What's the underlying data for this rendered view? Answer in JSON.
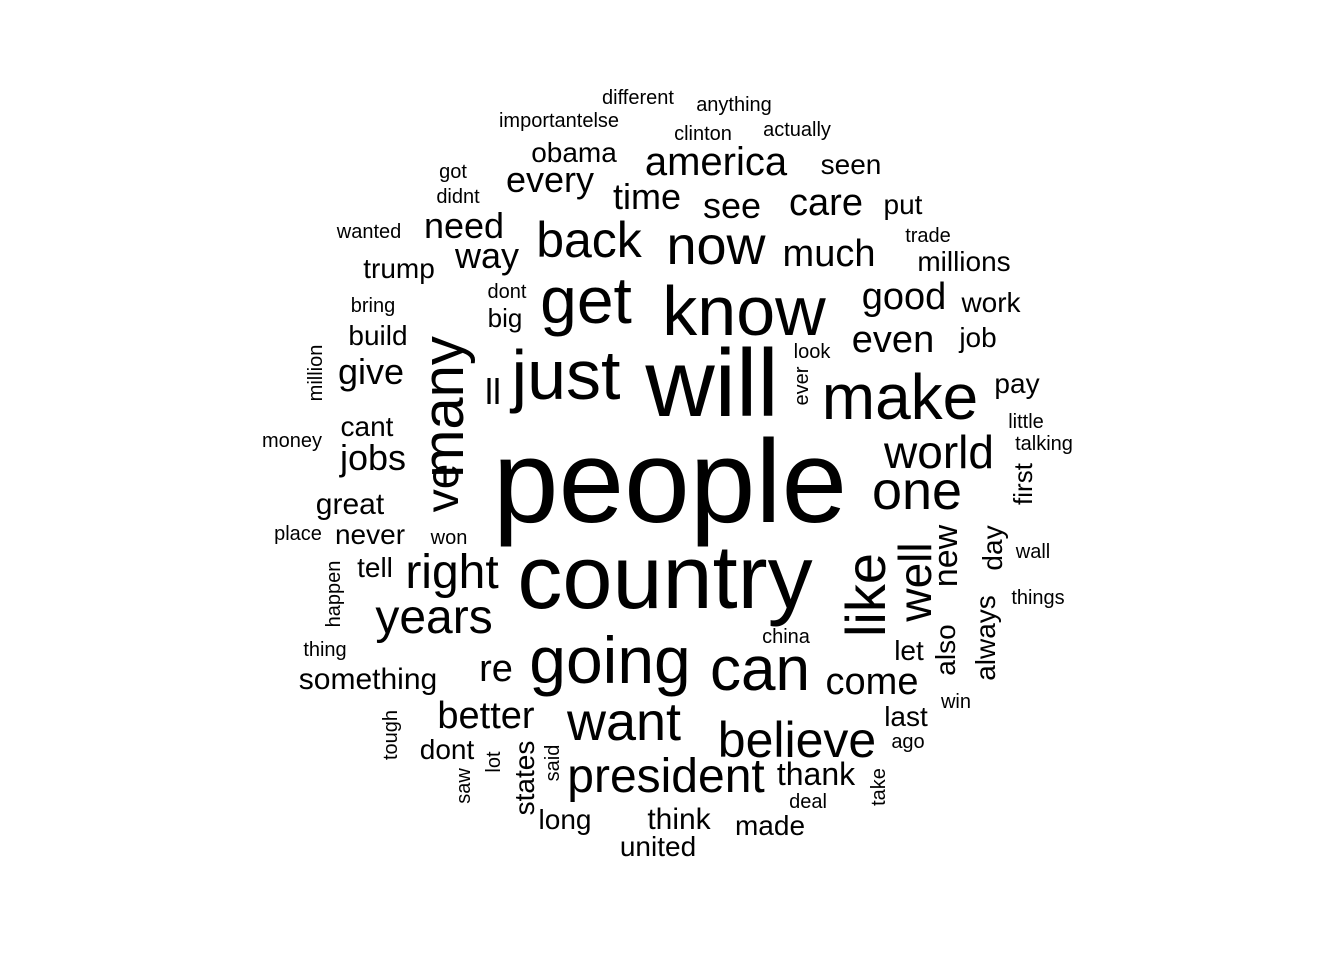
{
  "text_color": "#000000",
  "background": "#ffffff",
  "words": [
    {
      "text": "people",
      "rotated": false
    },
    {
      "text": "country",
      "rotated": false
    },
    {
      "text": "will",
      "rotated": false
    },
    {
      "text": "know",
      "rotated": false
    },
    {
      "text": "just",
      "rotated": false
    },
    {
      "text": "get",
      "rotated": false
    },
    {
      "text": "make",
      "rotated": false
    },
    {
      "text": "many",
      "rotated": true
    },
    {
      "text": "going",
      "rotated": false
    },
    {
      "text": "can",
      "rotated": false
    },
    {
      "text": "want",
      "rotated": false
    },
    {
      "text": "president",
      "rotated": false
    },
    {
      "text": "like",
      "rotated": true
    },
    {
      "text": "believe",
      "rotated": false
    },
    {
      "text": "one",
      "rotated": false
    },
    {
      "text": "now",
      "rotated": false
    },
    {
      "text": "back",
      "rotated": false
    },
    {
      "text": "world",
      "rotated": false
    },
    {
      "text": "right",
      "rotated": false
    },
    {
      "text": "years",
      "rotated": false
    },
    {
      "text": "ve",
      "rotated": true
    },
    {
      "text": "well",
      "rotated": true
    },
    {
      "text": "america",
      "rotated": false
    },
    {
      "text": "much",
      "rotated": false
    },
    {
      "text": "good",
      "rotated": false
    },
    {
      "text": "even",
      "rotated": false
    },
    {
      "text": "come",
      "rotated": false
    },
    {
      "text": "better",
      "rotated": false
    },
    {
      "text": "time",
      "rotated": false
    },
    {
      "text": "every",
      "rotated": false
    },
    {
      "text": "way",
      "rotated": false
    },
    {
      "text": "need",
      "rotated": false
    },
    {
      "text": "care",
      "rotated": false
    },
    {
      "text": "see",
      "rotated": false
    },
    {
      "text": "re",
      "rotated": false
    },
    {
      "text": "jobs",
      "rotated": false
    },
    {
      "text": "give",
      "rotated": false
    },
    {
      "text": "thank",
      "rotated": false
    },
    {
      "text": "new",
      "rotated": true
    },
    {
      "text": "obama",
      "rotated": false
    },
    {
      "text": "seen",
      "rotated": false
    },
    {
      "text": "put",
      "rotated": false
    },
    {
      "text": "trump",
      "rotated": false
    },
    {
      "text": "millions",
      "rotated": false
    },
    {
      "text": "work",
      "rotated": false
    },
    {
      "text": "build",
      "rotated": false
    },
    {
      "text": "job",
      "rotated": false
    },
    {
      "text": "pay",
      "rotated": false
    },
    {
      "text": "cant",
      "rotated": false
    },
    {
      "text": "great",
      "rotated": false
    },
    {
      "text": "never",
      "rotated": false
    },
    {
      "text": "tell",
      "rotated": false
    },
    {
      "text": "something",
      "rotated": false
    },
    {
      "text": "dont",
      "rotated": false
    },
    {
      "text": "long",
      "rotated": false
    },
    {
      "text": "think",
      "rotated": false
    },
    {
      "text": "made",
      "rotated": false
    },
    {
      "text": "united",
      "rotated": false
    },
    {
      "text": "last",
      "rotated": false
    },
    {
      "text": "let",
      "rotated": false
    },
    {
      "text": "states",
      "rotated": true
    },
    {
      "text": "big",
      "rotated": false
    },
    {
      "text": "ll",
      "rotated": false
    },
    {
      "text": "always",
      "rotated": true
    },
    {
      "text": "day",
      "rotated": true
    },
    {
      "text": "also",
      "rotated": true
    },
    {
      "text": "first",
      "rotated": true
    },
    {
      "text": "different",
      "rotated": false
    },
    {
      "text": "anything",
      "rotated": false
    },
    {
      "text": "importantelse",
      "rotated": false
    },
    {
      "text": "clinton",
      "rotated": false
    },
    {
      "text": "actually",
      "rotated": false
    },
    {
      "text": "got",
      "rotated": false
    },
    {
      "text": "didnt",
      "rotated": false
    },
    {
      "text": "wanted",
      "rotated": false
    },
    {
      "text": "trade",
      "rotated": false
    },
    {
      "text": "dont",
      "rotated": false
    },
    {
      "text": "bring",
      "rotated": false
    },
    {
      "text": "look",
      "rotated": false
    },
    {
      "text": "ever",
      "rotated": true
    },
    {
      "text": "million",
      "rotated": true
    },
    {
      "text": "money",
      "rotated": false
    },
    {
      "text": "little",
      "rotated": false
    },
    {
      "text": "talking",
      "rotated": false
    },
    {
      "text": "place",
      "rotated": false
    },
    {
      "text": "won",
      "rotated": false
    },
    {
      "text": "wall",
      "rotated": false
    },
    {
      "text": "happen",
      "rotated": true
    },
    {
      "text": "things",
      "rotated": false
    },
    {
      "text": "thing",
      "rotated": false
    },
    {
      "text": "china",
      "rotated": false
    },
    {
      "text": "win",
      "rotated": false
    },
    {
      "text": "tough",
      "rotated": true
    },
    {
      "text": "ago",
      "rotated": false
    },
    {
      "text": "lot",
      "rotated": true
    },
    {
      "text": "said",
      "rotated": true
    },
    {
      "text": "saw",
      "rotated": true
    },
    {
      "text": "deal",
      "rotated": false
    },
    {
      "text": "take",
      "rotated": true
    }
  ]
}
